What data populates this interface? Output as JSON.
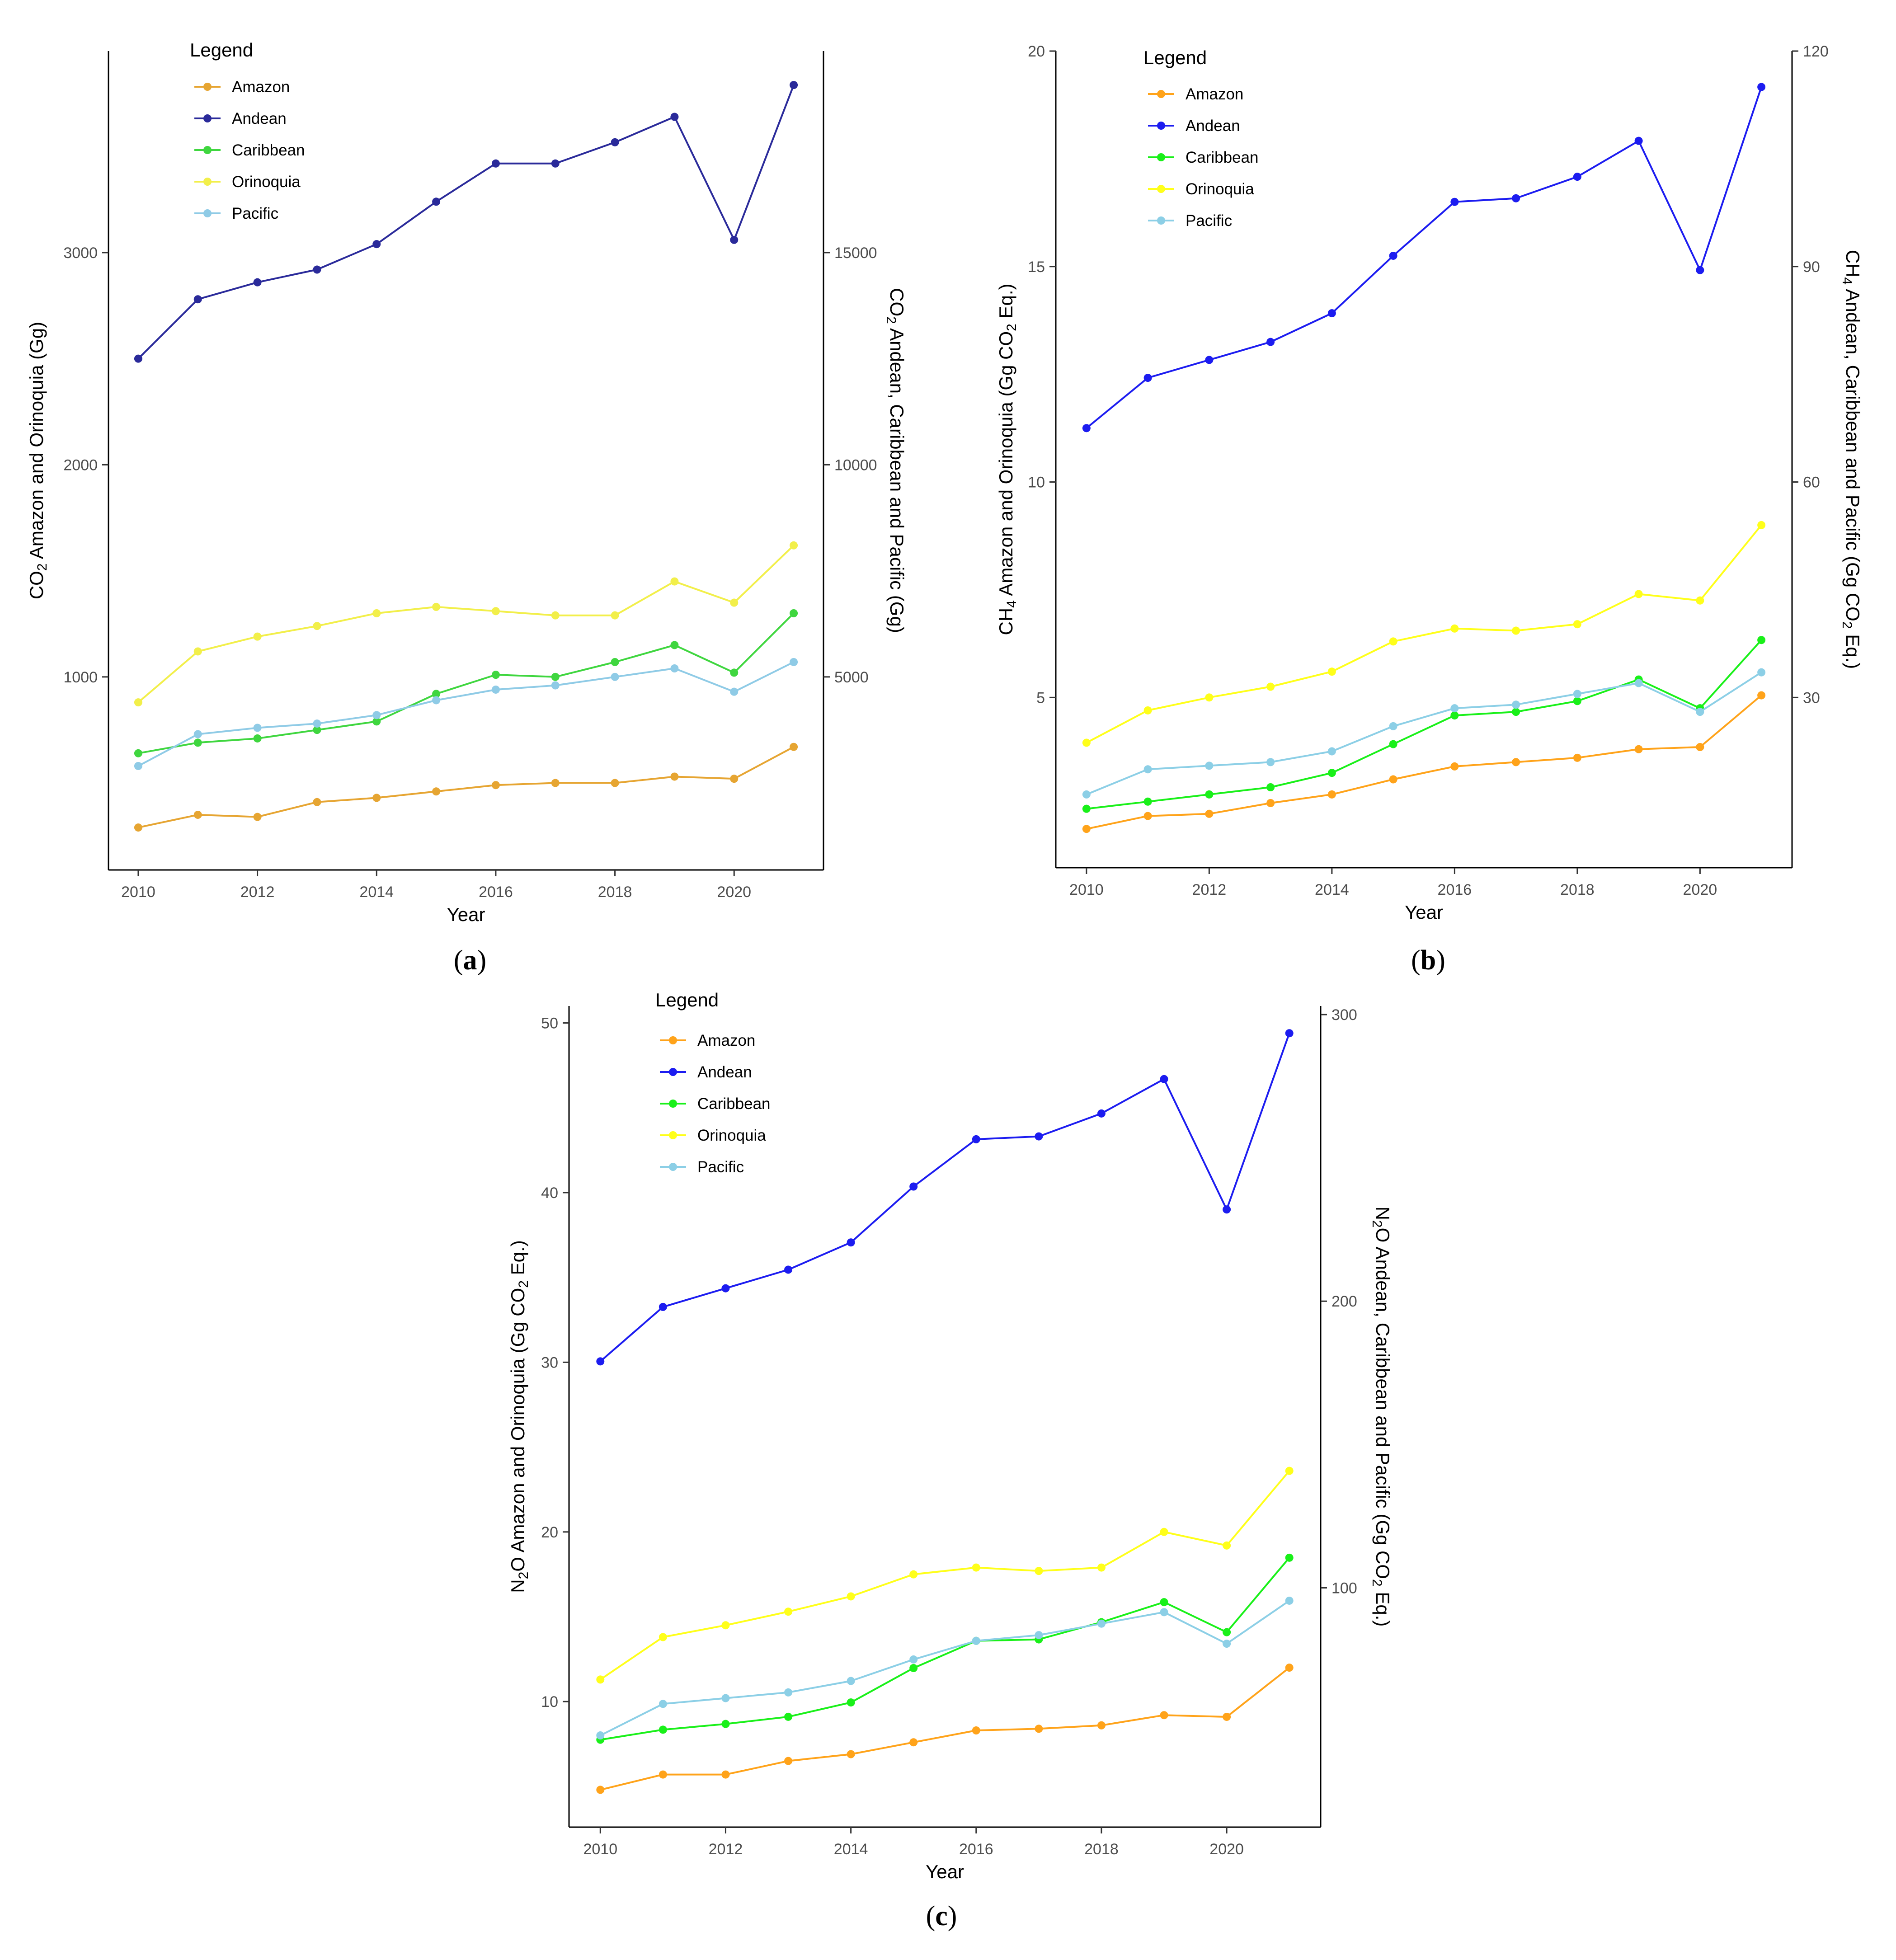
{
  "colors": {
    "axis": "#000000",
    "tick_text": "#4d4d4d"
  },
  "chart_data": [
    {
      "panel": "a",
      "panel_label": "a",
      "type": "line",
      "x": [
        2010,
        2011,
        2012,
        2013,
        2014,
        2015,
        2016,
        2017,
        2018,
        2019,
        2020,
        2021
      ],
      "xlabel": "Year",
      "xticks": [
        2010,
        2012,
        2014,
        2016,
        2018,
        2020
      ],
      "xlim": [
        2009.5,
        2021.5
      ],
      "ylabel_left": {
        "prefix": "CO",
        "sub": "2",
        "suffix": " Amazon and Orinoquia (Gg)"
      },
      "ylabel_right": {
        "prefix": "CO",
        "sub": "2",
        "suffix": " Andean, Caribbean and Pacific (Gg)"
      },
      "ylim_left": [
        90,
        3950
      ],
      "yticks_left": [
        1000,
        2000,
        3000
      ],
      "ylim_right": [
        450,
        19750
      ],
      "yticks_right": [
        5000,
        10000,
        15000
      ],
      "legend_title": "Legend",
      "legend_position": "top-left",
      "series": [
        {
          "name": "Amazon",
          "color": "#e6a532",
          "axis": "left",
          "values": [
            290,
            350,
            340,
            410,
            430,
            460,
            490,
            500,
            500,
            530,
            520,
            670
          ]
        },
        {
          "name": "Andean",
          "color": "#2a2a9a",
          "axis": "right",
          "values": [
            12500,
            13900,
            14300,
            14600,
            15200,
            16200,
            17100,
            17100,
            17600,
            18200,
            15300,
            18950
          ]
        },
        {
          "name": "Caribbean",
          "color": "#3fd63f",
          "axis": "right",
          "values": [
            3200,
            3450,
            3550,
            3750,
            3950,
            4600,
            5050,
            5000,
            5350,
            5750,
            5100,
            6500
          ]
        },
        {
          "name": "Orinoquia",
          "color": "#f2ef4a",
          "axis": "left",
          "values": [
            880,
            1120,
            1190,
            1240,
            1300,
            1330,
            1310,
            1290,
            1290,
            1450,
            1350,
            1620
          ]
        },
        {
          "name": "Pacific",
          "color": "#8fcbe6",
          "axis": "right",
          "values": [
            2900,
            3650,
            3800,
            3900,
            4100,
            4450,
            4700,
            4800,
            5000,
            5200,
            4650,
            5350
          ]
        }
      ]
    },
    {
      "panel": "b",
      "panel_label": "b",
      "type": "line",
      "x": [
        2010,
        2011,
        2012,
        2013,
        2014,
        2015,
        2016,
        2017,
        2018,
        2019,
        2020,
        2021
      ],
      "xlabel": "Year",
      "xticks": [
        2010,
        2012,
        2014,
        2016,
        2018,
        2020
      ],
      "xlim": [
        2009.5,
        2021.5
      ],
      "ylabel_left": {
        "prefix": "CH",
        "sub": "4",
        "suffix": " Amazon and Orinoquia (Gg CO",
        "sub2": "2",
        "suffix2": " Eq.)"
      },
      "ylabel_right": {
        "prefix": "CH",
        "sub": "4",
        "suffix": " Andean, Caribbean and Pacific (Gg CO",
        "sub2": "2",
        "suffix2": " Eq.)"
      },
      "ylim_left": [
        1.05,
        20
      ],
      "yticks_left": [
        5,
        10,
        15,
        20
      ],
      "ylim_right": [
        6.3,
        120
      ],
      "yticks_right": [
        30,
        60,
        90,
        120
      ],
      "legend_title": "Legend",
      "legend_position": "top-left",
      "series": [
        {
          "name": "Amazon",
          "color": "#ffa31a",
          "axis": "left",
          "values": [
            1.95,
            2.25,
            2.3,
            2.55,
            2.75,
            3.1,
            3.4,
            3.5,
            3.6,
            3.8,
            3.85,
            5.05
          ]
        },
        {
          "name": "Andean",
          "color": "#1c1cf0",
          "axis": "right",
          "values": [
            67.5,
            74.5,
            77,
            79.5,
            83.5,
            91.5,
            99,
            99.5,
            102.5,
            107.5,
            89.5,
            115
          ]
        },
        {
          "name": "Caribbean",
          "color": "#19f019",
          "axis": "right",
          "values": [
            14.5,
            15.5,
            16.5,
            17.5,
            19.5,
            23.5,
            27.5,
            28,
            29.5,
            32.5,
            28.5,
            38
          ]
        },
        {
          "name": "Orinoquia",
          "color": "#ffff1a",
          "axis": "left",
          "values": [
            3.95,
            4.7,
            5,
            5.25,
            5.6,
            6.3,
            6.6,
            6.55,
            6.7,
            7.4,
            7.25,
            9
          ]
        },
        {
          "name": "Pacific",
          "color": "#8ccfe6",
          "axis": "right",
          "values": [
            16.5,
            20,
            20.5,
            21,
            22.5,
            26,
            28.5,
            29,
            30.5,
            32,
            28,
            33.5
          ]
        }
      ]
    },
    {
      "panel": "c",
      "panel_label": "c",
      "type": "line",
      "x": [
        2010,
        2011,
        2012,
        2013,
        2014,
        2015,
        2016,
        2017,
        2018,
        2019,
        2020,
        2021
      ],
      "xlabel": "Year",
      "xticks": [
        2010,
        2012,
        2014,
        2016,
        2018,
        2020
      ],
      "xlim": [
        2009.5,
        2021.5
      ],
      "ylabel_left": {
        "prefix": "N",
        "sub": "2",
        "suffix": "O Amazon and Orinoquia (Gg CO",
        "sub2": "2",
        "suffix2": " Eq.)"
      },
      "ylabel_right": {
        "prefix": "N",
        "sub": "2",
        "suffix": "O Andean, Caribbean and Pacific (Gg CO",
        "sub2": "2",
        "suffix2": " Eq.)"
      },
      "ylim_left": [
        2.6,
        51
      ],
      "yticks_left": [
        10,
        20,
        30,
        40,
        50
      ],
      "ylim_right": [
        16.5,
        303
      ],
      "yticks_right": [
        100,
        200,
        300
      ],
      "legend_title": "Legend",
      "legend_position": "top-left",
      "series": [
        {
          "name": "Amazon",
          "color": "#ffa31a",
          "axis": "left",
          "values": [
            4.8,
            5.7,
            5.7,
            6.5,
            6.9,
            7.6,
            8.3,
            8.4,
            8.6,
            9.2,
            9.1,
            12
          ]
        },
        {
          "name": "Andean",
          "color": "#1c1cf0",
          "axis": "right",
          "values": [
            179,
            198,
            204.5,
            211,
            220.5,
            240,
            256.5,
            257.5,
            265.5,
            277.5,
            232,
            293.5
          ]
        },
        {
          "name": "Caribbean",
          "color": "#19f019",
          "axis": "right",
          "values": [
            47,
            50.5,
            52.5,
            55,
            60,
            72,
            81.5,
            82,
            88,
            95,
            84.5,
            110.5
          ]
        },
        {
          "name": "Orinoquia",
          "color": "#ffff1a",
          "axis": "left",
          "values": [
            11.3,
            13.8,
            14.5,
            15.3,
            16.2,
            17.5,
            17.9,
            17.7,
            17.9,
            20,
            19.2,
            23.6
          ]
        },
        {
          "name": "Pacific",
          "color": "#8ccfe6",
          "axis": "right",
          "values": [
            48.5,
            59.5,
            61.5,
            63.5,
            67.5,
            75,
            81.5,
            83.5,
            87.5,
            91.5,
            80.5,
            95.5
          ]
        }
      ]
    }
  ]
}
